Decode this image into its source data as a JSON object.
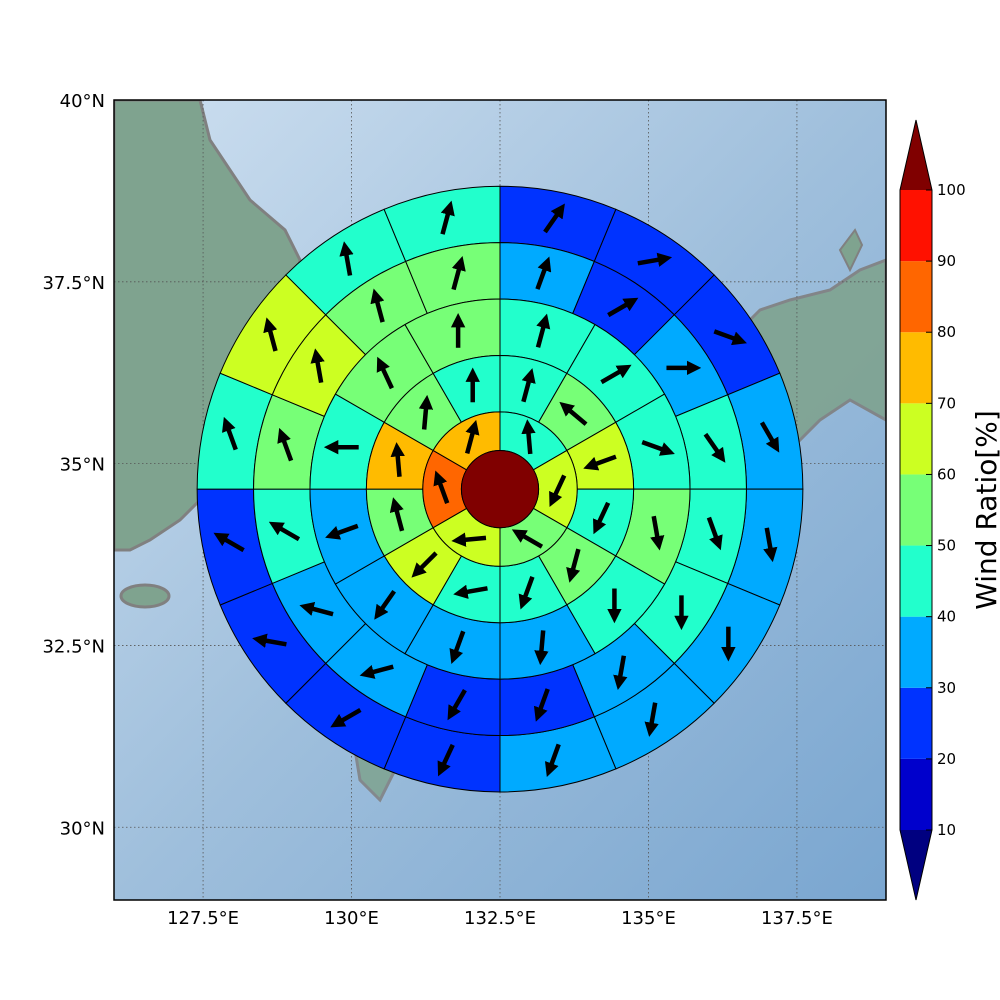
{
  "map": {
    "lon_range": [
      126.0,
      139.0
    ],
    "lat_range": [
      29.0,
      40.0
    ],
    "lon_ticks": [
      {
        "value": 127.5,
        "label": "127.5°E"
      },
      {
        "value": 130.0,
        "label": "130°E"
      },
      {
        "value": 132.5,
        "label": "132.5°E"
      },
      {
        "value": 135.0,
        "label": "135°E"
      },
      {
        "value": 137.5,
        "label": "137.5°E"
      }
    ],
    "lat_ticks": [
      {
        "value": 30.0,
        "label": "30°N"
      },
      {
        "value": 32.5,
        "label": "32.5°N"
      },
      {
        "value": 35.0,
        "label": "35°N"
      },
      {
        "value": 37.5,
        "label": "37.5°N"
      },
      {
        "value": 40.0,
        "label": "40°N"
      }
    ],
    "grid": true,
    "background": "shaded relief with coastlines",
    "land_color": "#7fa38f",
    "sea_color": "#a9c4de",
    "coastline_color": "#808080"
  },
  "wind_rose": {
    "center": {
      "lon": 132.5,
      "lat": 34.65
    },
    "center_value": 100,
    "ring_edges": [
      0.65,
      1.3,
      2.25,
      3.2,
      4.15,
      5.1
    ],
    "sectors_per_ring": [
      0,
      6,
      12,
      12,
      16,
      16
    ],
    "rings": [
      {
        "ratios": [
          45,
          60,
          55,
          65,
          85,
          75
        ],
        "wind_dir_deg": [
          355,
          205,
          300,
          265,
          340,
          15
        ]
      },
      {
        "ratios": [
          45,
          55,
          60,
          45,
          55,
          45,
          40,
          60,
          55,
          70,
          55,
          45
        ],
        "wind_dir_deg": [
          15,
          310,
          250,
          205,
          195,
          200,
          260,
          225,
          345,
          355,
          5,
          0
        ],
        "start_deg": 0
      },
      {
        "ratios": [
          40,
          45,
          45,
          50,
          45,
          35,
          35,
          35,
          35,
          45,
          55,
          55
        ],
        "wind_dir_deg": [
          15,
          60,
          110,
          170,
          180,
          185,
          200,
          215,
          250,
          270,
          335,
          0
        ],
        "start_deg": 0
      },
      {
        "ratios": [
          35,
          25,
          35,
          40,
          45,
          40,
          35,
          25,
          25,
          35,
          35,
          45,
          55,
          60,
          55,
          50
        ],
        "wind_dir_deg": [
          20,
          60,
          90,
          145,
          160,
          180,
          190,
          200,
          210,
          255,
          285,
          300,
          340,
          350,
          345,
          15
        ],
        "start_deg": 0
      },
      {
        "ratios": [
          20,
          20,
          20,
          30,
          35,
          35,
          35,
          30,
          20,
          20,
          20,
          25,
          40,
          60,
          45,
          40
        ],
        "wind_dir_deg": [
          35,
          80,
          110,
          150,
          170,
          180,
          190,
          200,
          205,
          240,
          280,
          300,
          340,
          345,
          350,
          15
        ],
        "start_deg": 0
      }
    ]
  },
  "colorbar": {
    "label": "Wind Ratio[%]",
    "levels": [
      10,
      20,
      30,
      40,
      50,
      60,
      70,
      80,
      90,
      100
    ],
    "tick_labels": [
      "10",
      "20",
      "30",
      "40",
      "50",
      "60",
      "70",
      "80",
      "90",
      "100"
    ],
    "colors": [
      "#0000cc",
      "#0033ff",
      "#00aaff",
      "#22ffcc",
      "#77ff77",
      "#ccff22",
      "#ffbb00",
      "#ff6600",
      "#ff1100"
    ],
    "under_color": "#000080",
    "over_color": "#800000",
    "extend": "both"
  }
}
